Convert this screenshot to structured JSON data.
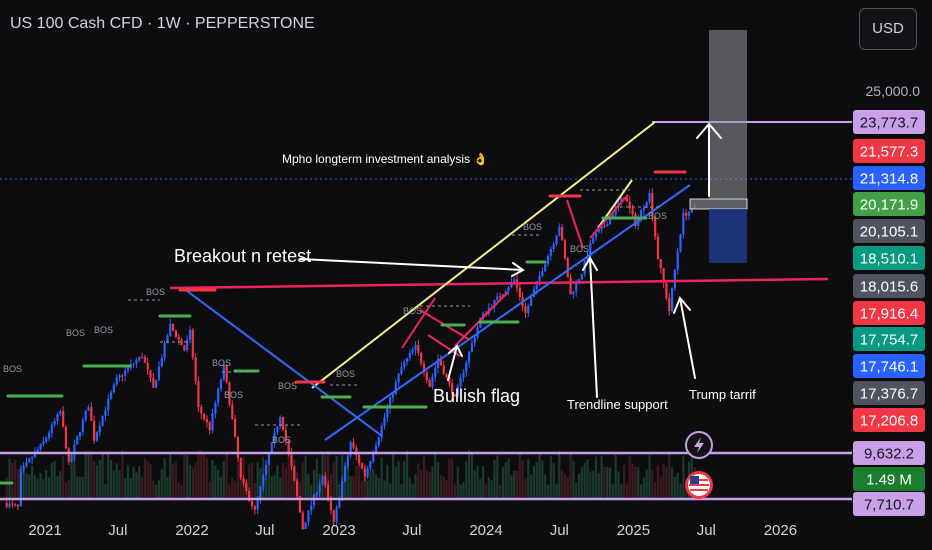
{
  "header": {
    "title": "US 100 Cash CFD · 1W · PEPPERSTONE",
    "currency_button": "USD"
  },
  "colors": {
    "background": "#0d0d0f",
    "candle_up": "#2962ff",
    "candle_down": "#f23645",
    "trend_blue": "#2f6bff",
    "trend_yellow": "#f5f08a",
    "trend_red": "#f0245c",
    "level_purple": "#c9a0e8",
    "level_green": "#4caf50"
  },
  "chart_data": {
    "type": "candlestick",
    "symbol": "US 100 Cash CFD",
    "timeframe": "1W",
    "y_axis_scale": "log",
    "grid": false,
    "x_axis": {
      "tick_labels": [
        "2021",
        "Jul",
        "2022",
        "Jul",
        "2023",
        "Jul",
        "2024",
        "Jul",
        "2025",
        "Jul",
        "2026"
      ]
    },
    "y_axis": {
      "tick_labels": [
        "25,000.0"
      ],
      "price_badges": [
        {
          "label": "23,773.7",
          "value": 23773.7,
          "color": "#c9a0e8",
          "text_color": "#131722"
        },
        {
          "label": "21,577.3",
          "value": 21577.3,
          "color": "#f23645",
          "text_color": "#ffffff"
        },
        {
          "label": "21,314.8",
          "value": 21314.8,
          "color": "#2962ff",
          "text_color": "#ffffff"
        },
        {
          "label": "20,171.9",
          "value": 20171.9,
          "color": "#43a047",
          "text_color": "#ffffff"
        },
        {
          "label": "20,105.1",
          "value": 20105.1,
          "color": "#50535e",
          "text_color": "#ffffff"
        },
        {
          "label": "18,510.1",
          "value": 18510.1,
          "color": "#089981",
          "text_color": "#ffffff"
        },
        {
          "label": "18,015.6",
          "value": 18015.6,
          "color": "#50535e",
          "text_color": "#ffffff"
        },
        {
          "label": "17,916.4",
          "value": 17916.4,
          "color": "#f23645",
          "text_color": "#ffffff"
        },
        {
          "label": "17,754.7",
          "value": 17754.7,
          "color": "#089981",
          "text_color": "#ffffff"
        },
        {
          "label": "17,746.1",
          "value": 17746.1,
          "color": "#2962ff",
          "text_color": "#ffffff"
        },
        {
          "label": "17,376.7",
          "value": 17376.7,
          "color": "#50535e",
          "text_color": "#ffffff"
        },
        {
          "label": "17,206.8",
          "value": 17206.8,
          "color": "#f23645",
          "text_color": "#ffffff"
        },
        {
          "label": "9,632.2",
          "value": 9632.2,
          "color": "#c9a0e8",
          "text_color": "#131722"
        },
        {
          "label": "1.49 M",
          "value": 1490000,
          "color": "#1b7e2f",
          "text_color": "#ffffff"
        },
        {
          "label": "7,710.7",
          "value": 7710.7,
          "color": "#c9a0e8",
          "text_color": "#131722"
        }
      ]
    },
    "candles": {
      "start_date": "2020-09-28",
      "interval_days": 7,
      "anchors": [
        [
          "2020-09-28",
          11300
        ],
        [
          "2020-11-02",
          11200
        ],
        [
          "2020-11-09",
          12100
        ],
        [
          "2021-01-04",
          12900
        ],
        [
          "2021-02-15",
          13800
        ],
        [
          "2021-03-08",
          12300
        ],
        [
          "2021-04-26",
          14000
        ],
        [
          "2021-05-10",
          13000
        ],
        [
          "2021-07-05",
          14800
        ],
        [
          "2021-09-06",
          15600
        ],
        [
          "2021-10-04",
          14500
        ],
        [
          "2021-11-15",
          16650
        ],
        [
          "2021-12-20",
          15800
        ],
        [
          "2022-01-03",
          16400
        ],
        [
          "2022-01-24",
          13900
        ],
        [
          "2022-02-21",
          13300
        ],
        [
          "2022-03-28",
          15200
        ],
        [
          "2022-05-09",
          11900
        ],
        [
          "2022-06-13",
          11100
        ],
        [
          "2022-08-15",
          13700
        ],
        [
          "2022-10-10",
          10700
        ],
        [
          "2022-11-28",
          12000
        ],
        [
          "2022-12-26",
          10800
        ],
        [
          "2023-02-06",
          12900
        ],
        [
          "2023-03-13",
          12000
        ],
        [
          "2023-04-17",
          13100
        ],
        [
          "2023-06-12",
          15200
        ],
        [
          "2023-07-17",
          15900
        ],
        [
          "2023-08-21",
          14600
        ],
        [
          "2023-09-11",
          15500
        ],
        [
          "2023-10-23",
          14200
        ],
        [
          "2023-12-25",
          16900
        ],
        [
          "2024-01-15",
          17300
        ],
        [
          "2024-03-18",
          18400
        ],
        [
          "2024-04-15",
          17100
        ],
        [
          "2024-06-24",
          20000
        ],
        [
          "2024-07-08",
          20700
        ],
        [
          "2024-08-05",
          17800
        ],
        [
          "2024-09-02",
          18700
        ],
        [
          "2024-09-30",
          20200
        ],
        [
          "2024-10-28",
          20700
        ],
        [
          "2024-12-16",
          22100
        ],
        [
          "2025-01-13",
          20800
        ],
        [
          "2025-02-17",
          22200
        ],
        [
          "2025-03-10",
          19300
        ],
        [
          "2025-04-07",
          17200
        ],
        [
          "2025-05-12",
          21200
        ],
        [
          "2025-06-02",
          21400
        ]
      ]
    },
    "annotations": [
      {
        "text": "Mpho longterm investment analysis 👌"
      },
      {
        "text": "Breakout n retest"
      },
      {
        "text": "Bullish  flag"
      },
      {
        "text": "Trendline support"
      },
      {
        "text": "Trump tarrif"
      },
      {
        "text": "BOS"
      }
    ]
  }
}
